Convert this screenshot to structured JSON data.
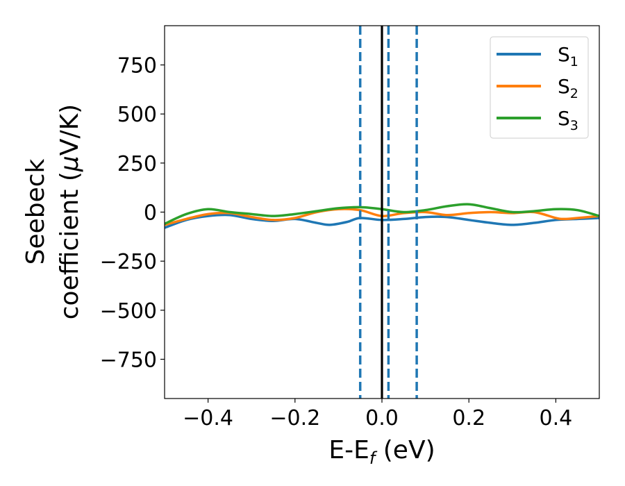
{
  "chart_data": {
    "type": "line",
    "xlabel": {
      "main": "E-E",
      "sub": "f",
      "suffix": " (eV)"
    },
    "ylabel": {
      "line1": "Seebeck",
      "line2": "coefficient  (",
      "mu": "μ",
      "unit": "V/K)"
    },
    "xlim": [
      -0.5,
      0.5
    ],
    "ylim": [
      -950,
      950
    ],
    "xticks": [
      -0.4,
      -0.2,
      0.0,
      0.2,
      0.4
    ],
    "xtick_labels": [
      "−0.4",
      "−0.2",
      "0.0",
      "0.2",
      "0.4"
    ],
    "yticks": [
      750,
      500,
      250,
      0,
      -250,
      -500,
      -750
    ],
    "ytick_labels": [
      "750",
      "500",
      "250",
      "0",
      "−250",
      "−500",
      "−750"
    ],
    "grid": false,
    "legend_position": "top-right",
    "reference_lines": [
      {
        "x": 0.0,
        "style": "solid",
        "color": "#000000"
      },
      {
        "x": -0.05,
        "style": "dashed",
        "color": "#1f77b4"
      },
      {
        "x": 0.015,
        "style": "dashed",
        "color": "#1f77b4"
      },
      {
        "x": 0.08,
        "style": "dashed",
        "color": "#1f77b4"
      }
    ],
    "series": [
      {
        "name": "S",
        "sub": "1",
        "color": "#1f77b4",
        "x": [
          -0.5,
          -0.45,
          -0.4,
          -0.35,
          -0.3,
          -0.25,
          -0.2,
          -0.15,
          -0.12,
          -0.08,
          -0.05,
          0.0,
          0.05,
          0.1,
          0.15,
          0.2,
          0.25,
          0.3,
          0.35,
          0.4,
          0.45,
          0.5
        ],
        "y": [
          -80,
          -40,
          -20,
          -15,
          -35,
          -45,
          -35,
          -55,
          -65,
          -50,
          -30,
          -40,
          -35,
          -25,
          -25,
          -40,
          -55,
          -65,
          -55,
          -40,
          -35,
          -30
        ]
      },
      {
        "name": "S",
        "sub": "2",
        "color": "#ff7f0e",
        "x": [
          -0.5,
          -0.45,
          -0.4,
          -0.35,
          -0.3,
          -0.25,
          -0.2,
          -0.15,
          -0.1,
          -0.05,
          0.0,
          0.05,
          0.1,
          0.15,
          0.2,
          0.25,
          0.3,
          0.35,
          0.4,
          0.42,
          0.45,
          0.5
        ],
        "y": [
          -65,
          -35,
          -10,
          -5,
          -25,
          -40,
          -30,
          0,
          15,
          10,
          -20,
          -5,
          0,
          -15,
          -5,
          0,
          -5,
          0,
          -30,
          -35,
          -30,
          -20
        ]
      },
      {
        "name": "S",
        "sub": "3",
        "color": "#2ca02c",
        "x": [
          -0.5,
          -0.45,
          -0.4,
          -0.35,
          -0.3,
          -0.25,
          -0.2,
          -0.15,
          -0.1,
          -0.05,
          0.0,
          0.05,
          0.1,
          0.15,
          0.2,
          0.25,
          0.3,
          0.35,
          0.4,
          0.45,
          0.5
        ],
        "y": [
          -60,
          -10,
          15,
          0,
          -10,
          -20,
          -10,
          5,
          20,
          25,
          15,
          0,
          10,
          30,
          40,
          20,
          0,
          5,
          15,
          10,
          -20
        ]
      }
    ]
  }
}
